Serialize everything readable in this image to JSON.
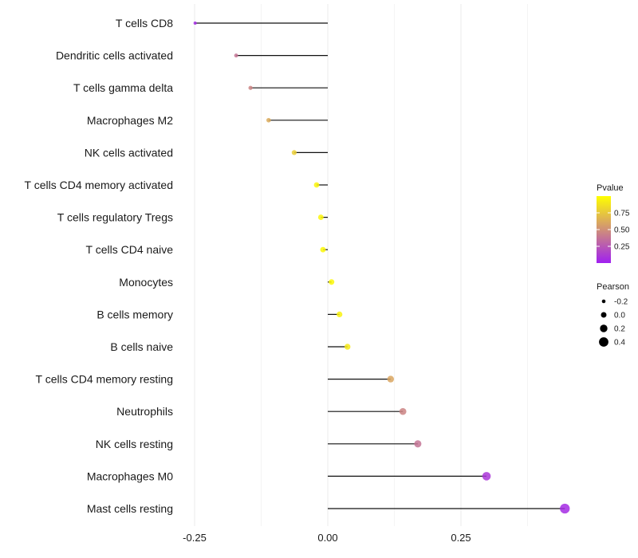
{
  "chart_data": {
    "type": "lollipop",
    "title": "",
    "xlabel": "",
    "ylabel": "",
    "xlim": [
      -0.25,
      0.45
    ],
    "xticks": [
      -0.25,
      0.0,
      0.25
    ],
    "xtick_labels": [
      "-0.25",
      "0.00",
      "0.25"
    ],
    "grid": true,
    "categories": [
      "T cells CD8",
      "Dendritic cells activated",
      "T cells gamma delta",
      "Macrophages M2",
      "NK cells activated",
      "T cells CD4 memory activated",
      "T cells regulatory  Tregs",
      "T cells CD4 naive",
      "Monocytes",
      "B cells memory",
      "B cells naive",
      "T cells CD4 memory resting",
      "Neutrophils",
      "NK cells resting",
      "Macrophages M0",
      "Mast cells resting"
    ],
    "pearson": [
      -0.249,
      -0.172,
      -0.145,
      -0.111,
      -0.063,
      -0.021,
      -0.013,
      -0.009,
      0.007,
      0.022,
      0.037,
      0.118,
      0.141,
      0.169,
      0.298,
      0.445
    ],
    "pvalue": [
      0.05,
      0.38,
      0.45,
      0.62,
      0.78,
      0.95,
      0.96,
      0.97,
      0.97,
      0.94,
      0.9,
      0.6,
      0.45,
      0.38,
      0.1,
      0.05
    ],
    "color_legend": {
      "title": "Pvalue",
      "ticks": [
        "0.75",
        "0.50",
        "0.25"
      ],
      "tick_values": [
        0.75,
        0.5,
        0.25
      ],
      "low_color": "#a020f0",
      "high_color": "#ffff00"
    },
    "size_legend": {
      "title": "Pearson",
      "labels": [
        "-0.2",
        "0.0",
        "0.2",
        "0.4"
      ],
      "values": [
        -0.2,
        0.0,
        0.2,
        0.4
      ]
    },
    "legend_position": "right"
  }
}
